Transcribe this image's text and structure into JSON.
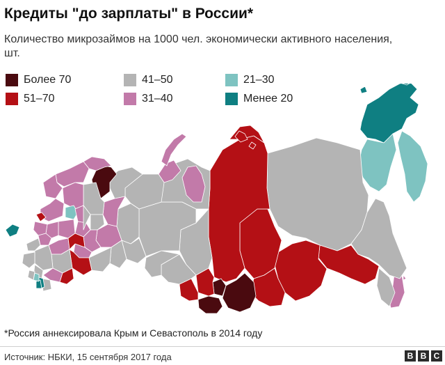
{
  "title": "Кредиты \"до зарплаты\" в России*",
  "subtitle": "Количество микрозаймов на 1000 чел. экономически активного населения, шт.",
  "legend": [
    {
      "label": "Более 70",
      "color": "#4a0a0f"
    },
    {
      "label": "41–50",
      "color": "#b4b4b4"
    },
    {
      "label": "21–30",
      "color": "#7ec3c1"
    },
    {
      "label": "51–70",
      "color": "#b41015"
    },
    {
      "label": "31–40",
      "color": "#c27aa9"
    },
    {
      "label": "Менее 20",
      "color": "#0f7f82"
    }
  ],
  "colors": {
    "over70": "#4a0a0f",
    "r51_70": "#b41015",
    "r41_50": "#b4b4b4",
    "r31_40": "#c27aa9",
    "r21_30": "#7ec3c1",
    "under20": "#0f7f82",
    "border": "#ffffff"
  },
  "footnote": "*Россия аннексировала Крым и Севастополь в 2014 году",
  "source": "Источник: НБКИ, 15 сентября 2017 года",
  "logo": [
    "B",
    "B",
    "C"
  ]
}
